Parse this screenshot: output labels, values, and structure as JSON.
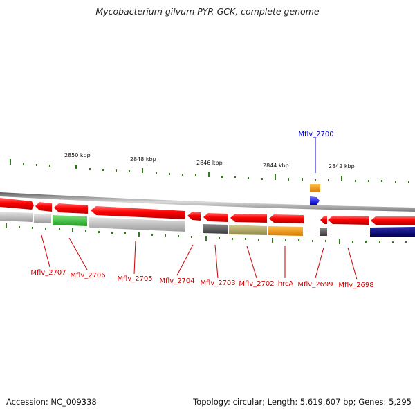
{
  "title": "Mycobacterium gilvum PYR-GCK, complete genome",
  "footer": {
    "accession": "Accession: NC_009338",
    "topology": "Topology: circular; Length: 5,619,607 bp; Genes: 5,295"
  },
  "ruler": {
    "tick_labels": [
      "2850 kbp",
      "2848 kbp",
      "2846 kbp",
      "2844 kbp",
      "2842 kbp"
    ],
    "tick_color": "#2e7d1a"
  },
  "genes": [
    {
      "label": "Mflv_2707",
      "strand": "reverse",
      "color": "#ff0000"
    },
    {
      "label": "Mflv_2706",
      "strand": "reverse",
      "color": "#ff0000"
    },
    {
      "label": "Mflv_2705",
      "strand": "reverse",
      "color": "#ff0000"
    },
    {
      "label": "Mflv_2704",
      "strand": "reverse",
      "color": "#ff0000"
    },
    {
      "label": "Mflv_2703",
      "strand": "reverse",
      "color": "#ff0000"
    },
    {
      "label": "Mflv_2702",
      "strand": "reverse",
      "color": "#ff0000"
    },
    {
      "label": "hrcA",
      "strand": "reverse",
      "color": "#ff0000"
    },
    {
      "label": "Mflv_2700",
      "strand": "forward",
      "color": "#1f1fff"
    },
    {
      "label": "Mflv_2699",
      "strand": "reverse",
      "color": "#ff0000"
    },
    {
      "label": "Mflv_2698",
      "strand": "reverse",
      "color": "#ff0000"
    }
  ],
  "colors": {
    "backbone": "#8c8c8c",
    "gene_reverse": "#ff0000",
    "gene_forward": "#1f1fff",
    "label_reverse": "#cc0000",
    "label_forward": "#0000cc",
    "category_gray": "#bdbdbd",
    "category_green": "#33cc33",
    "category_darkgray": "#666666",
    "category_olive": "#b3aa66",
    "category_orange": "#ff9900",
    "category_navy": "#000080"
  }
}
